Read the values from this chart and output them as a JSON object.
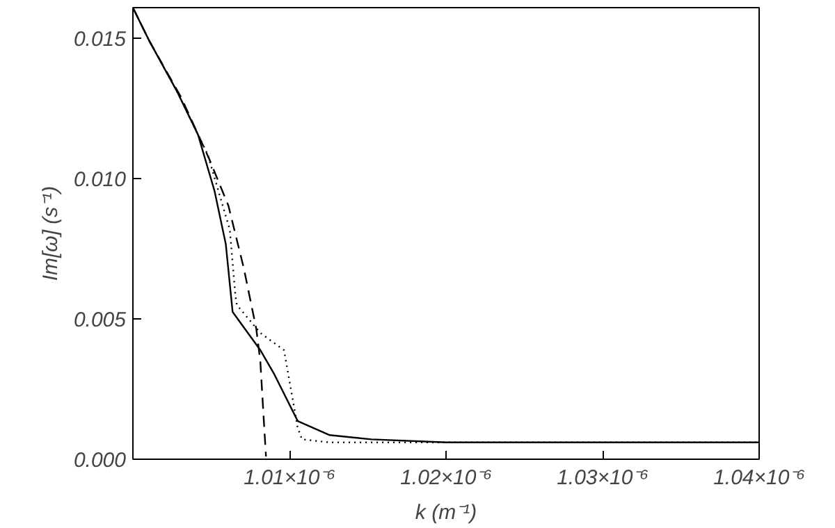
{
  "chart_data": {
    "type": "line",
    "xlabel": "k (m⁻¹)",
    "ylabel": "Im[ω] (s⁻¹)",
    "xlim": [
      1e-06,
      1.04e-06
    ],
    "ylim": [
      0,
      0.0161
    ],
    "xticks": [
      {
        "value": 1.01e-06,
        "label": "1.01×10⁻⁶"
      },
      {
        "value": 1.02e-06,
        "label": "1.02×10⁻⁶"
      },
      {
        "value": 1.03e-06,
        "label": "1.03×10⁻⁶"
      },
      {
        "value": 1.04e-06,
        "label": "1.04×10⁻⁶"
      }
    ],
    "yticks": [
      {
        "value": 0,
        "label": "0.000"
      },
      {
        "value": 0.005,
        "label": "0.005"
      },
      {
        "value": 0.01,
        "label": "0.010"
      },
      {
        "value": 0.015,
        "label": "0.015"
      }
    ],
    "grid": false,
    "marker": "none",
    "series": [
      {
        "color": "#000000",
        "line_style": "solid",
        "x": [
          1e-06,
          1.00106e-06,
          1.00283e-06,
          1.00416e-06,
          1.00522e-06,
          1.00593e-06,
          1.00637e-06,
          1.00814e-06,
          1.00903e-06,
          1.01053e-06,
          1.01257e-06,
          1.01522e-06,
          1.02e-06,
          1.04e-06
        ],
        "values": [
          0.0161,
          0.0149,
          0.0131,
          0.01157,
          0.00955,
          0.00768,
          0.00525,
          0.00389,
          0.00303,
          0.00136,
          0.00086,
          0.00071,
          0.0006,
          0.0006
        ]
      },
      {
        "color": "#000000",
        "line_style": "dotted",
        "x": [
          1e-06,
          1.00106e-06,
          1.00283e-06,
          1.00478e-06,
          1.00619e-06,
          1.00655e-06,
          1.00664e-06,
          1.00814e-06,
          1.00965e-06,
          1.01053e-06,
          1.0108e-06,
          1.01257e-06,
          1.04e-06
        ],
        "values": [
          0.0161,
          0.0149,
          0.0131,
          0.01086,
          0.00818,
          0.00581,
          0.0055,
          0.0045,
          0.00389,
          0.00111,
          0.00071,
          0.0006,
          0.0006
        ]
      },
      {
        "color": "#000000",
        "line_style": "dashed",
        "x": [
          1e-06,
          1.00106e-06,
          1.0031e-06,
          1.00487e-06,
          1.0061e-06,
          1.00708e-06,
          1.00788e-06,
          1.00814e-06,
          1.00832e-06,
          1.0085e-06
        ],
        "values": [
          0.0161,
          0.0149,
          0.01288,
          0.01071,
          0.00904,
          0.00682,
          0.00465,
          0.00348,
          0.00177,
          0.0001
        ]
      }
    ]
  }
}
